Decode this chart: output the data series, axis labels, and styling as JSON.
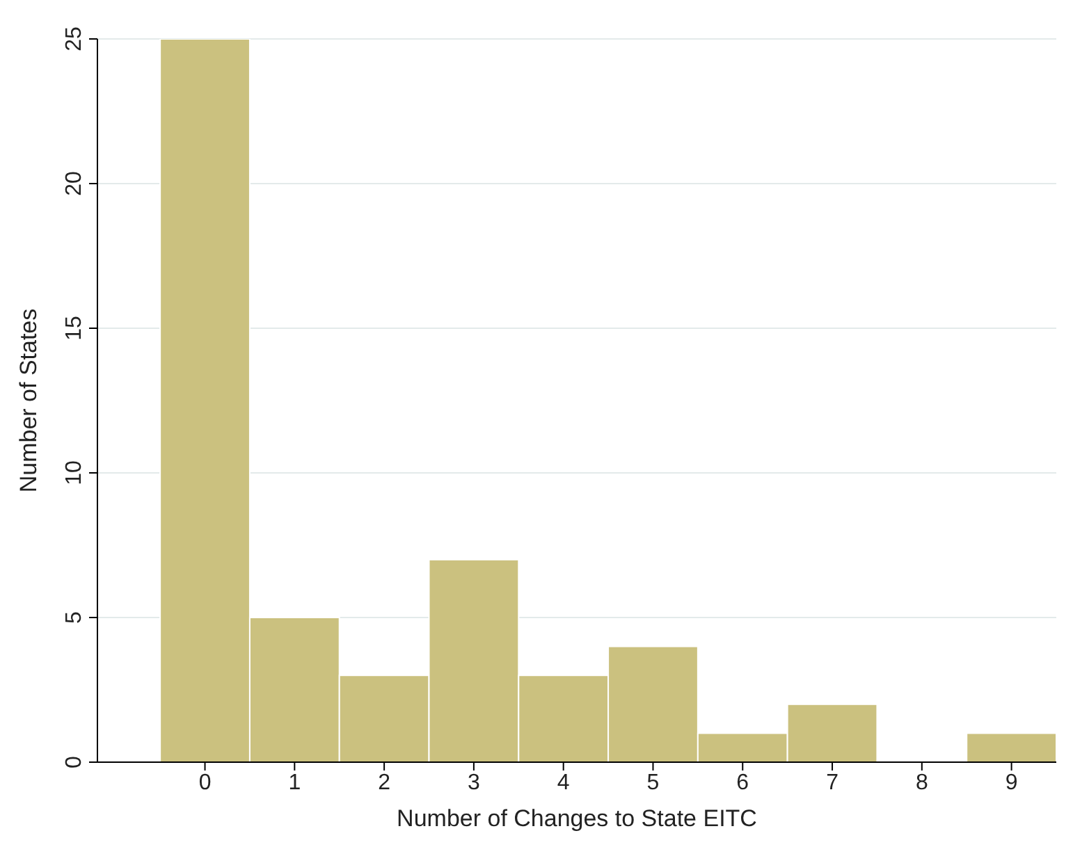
{
  "chart_data": {
    "type": "histogram",
    "xlabel": "Number of Changes to State EITC",
    "ylabel": "Number of States",
    "bins": [
      -0.5,
      0.5,
      1.5,
      2.5,
      3.5,
      4.5,
      5.5,
      6.5,
      7.5,
      8.5,
      9.5
    ],
    "values": [
      25,
      5,
      3,
      7,
      3,
      4,
      1,
      2,
      0,
      1
    ],
    "color": "#cbc17f",
    "xlim": [
      -1.2,
      9.5
    ],
    "xticks": [
      0,
      1,
      2,
      3,
      4,
      5,
      6,
      7,
      8,
      9
    ],
    "ylim": [
      0,
      25
    ],
    "yticks": [
      0,
      5,
      10,
      15,
      20,
      25
    ],
    "grid": "y"
  }
}
